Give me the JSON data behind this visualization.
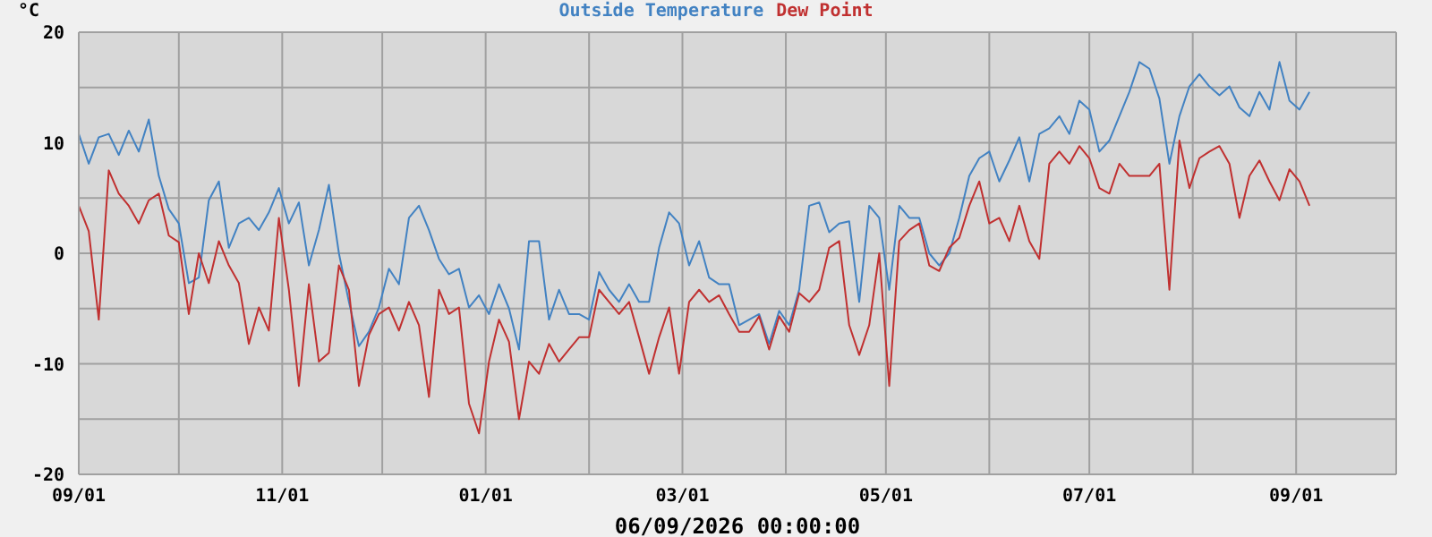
{
  "chart_data": {
    "type": "line",
    "ylabel": "°C",
    "xlabel": "06/09/2026 00:00:00",
    "legend": "top",
    "grid": true,
    "marker": "none",
    "line_style": "solid",
    "x": [
      "2025-09-01",
      "2025-09-04",
      "2025-09-07",
      "2025-09-10",
      "2025-09-13",
      "2025-09-16",
      "2025-09-19",
      "2025-09-22",
      "2025-09-25",
      "2025-09-28",
      "2025-10-01",
      "2025-10-04",
      "2025-10-07",
      "2025-10-10",
      "2025-10-13",
      "2025-10-16",
      "2025-10-19",
      "2025-10-22",
      "2025-10-25",
      "2025-10-28",
      "2025-10-31",
      "2025-11-03",
      "2025-11-06",
      "2025-11-09",
      "2025-11-12",
      "2025-11-15",
      "2025-11-18",
      "2025-11-21",
      "2025-11-24",
      "2025-11-27",
      "2025-11-30",
      "2025-12-03",
      "2025-12-06",
      "2025-12-09",
      "2025-12-12",
      "2025-12-15",
      "2025-12-18",
      "2025-12-21",
      "2025-12-24",
      "2025-12-27",
      "2025-12-30",
      "2026-01-02",
      "2026-01-05",
      "2026-01-08",
      "2026-01-11",
      "2026-01-14",
      "2026-01-17",
      "2026-01-20",
      "2026-01-23",
      "2026-01-26",
      "2026-01-29",
      "2026-02-01",
      "2026-02-04",
      "2026-02-07",
      "2026-02-10",
      "2026-02-13",
      "2026-02-16",
      "2026-02-19",
      "2026-02-22",
      "2026-02-25",
      "2026-02-28",
      "2026-03-03",
      "2026-03-06",
      "2026-03-09",
      "2026-03-12",
      "2026-03-15",
      "2026-03-18",
      "2026-03-21",
      "2026-03-24",
      "2026-03-27",
      "2026-03-30",
      "2026-04-02",
      "2026-04-05",
      "2026-04-08",
      "2026-04-11",
      "2026-04-14",
      "2026-04-17",
      "2026-04-20",
      "2026-04-23",
      "2026-04-26",
      "2026-04-29",
      "2026-05-02",
      "2026-05-05",
      "2026-05-08",
      "2026-05-11",
      "2026-05-14",
      "2026-05-17",
      "2026-05-20",
      "2026-05-23",
      "2026-05-26",
      "2026-05-29",
      "2026-06-01",
      "2026-06-04",
      "2026-06-07",
      "2026-06-10",
      "2026-06-13",
      "2026-06-16",
      "2026-06-19",
      "2026-06-22",
      "2026-06-25",
      "2026-06-28",
      "2026-07-01",
      "2026-07-04",
      "2026-07-07",
      "2026-07-10",
      "2026-07-13",
      "2026-07-16",
      "2026-07-19",
      "2026-07-22",
      "2026-07-25",
      "2026-07-28",
      "2026-07-31",
      "2026-08-03",
      "2026-08-06",
      "2026-08-09",
      "2026-08-12",
      "2026-08-15",
      "2026-08-18",
      "2026-08-21",
      "2026-08-24",
      "2026-08-27",
      "2026-08-30",
      "2026-09-02",
      "2026-09-05"
    ],
    "series": [
      {
        "name": "Outside Temperature",
        "color": "#4282c2",
        "values": [
          10.8,
          8.1,
          10.5,
          10.8,
          8.9,
          11.1,
          9.2,
          12.1,
          7,
          4,
          2.7,
          -2.7,
          -2.2,
          4.8,
          6.5,
          0.5,
          2.7,
          3.2,
          2.1,
          3.7,
          5.9,
          2.7,
          4.6,
          -1.1,
          2.1,
          6.2,
          0,
          -4.4,
          -8.4,
          -7.1,
          -4.9,
          -1.4,
          -2.8,
          3.2,
          4.3,
          2.1,
          -0.5,
          -1.9,
          -1.4,
          -4.9,
          -3.8,
          -5.5,
          -2.8,
          -5,
          -8.7,
          1.1,
          1.1,
          -6,
          -3.3,
          -5.5,
          -5.5,
          -6,
          -1.7,
          -3.3,
          -4.4,
          -2.8,
          -4.4,
          -4.4,
          0.5,
          3.7,
          2.7,
          -1.1,
          1.1,
          -2.2,
          -2.8,
          -2.8,
          -6.5,
          -6,
          -5.5,
          -8.2,
          -5.2,
          -6.5,
          -3.3,
          4.3,
          4.6,
          1.9,
          2.7,
          2.9,
          -4.4,
          4.3,
          3.2,
          -3.3,
          4.3,
          3.2,
          3.2,
          0,
          -1.1,
          0,
          3.2,
          7,
          8.6,
          9.2,
          6.5,
          8.4,
          10.5,
          6.5,
          10.8,
          11.3,
          12.4,
          10.8,
          13.8,
          13,
          9.2,
          10.2,
          12.4,
          14.6,
          17.3,
          16.7,
          14,
          8.1,
          12.4,
          15.1,
          16.2,
          15.1,
          14.3,
          15.1,
          13.2,
          12.4,
          14.6,
          13,
          17.3,
          13.8,
          13,
          14.6
        ]
      },
      {
        "name": "Dew Point",
        "color": "#c03030",
        "values": [
          4.3,
          2,
          -6,
          7.5,
          5.4,
          4.3,
          2.7,
          4.8,
          5.4,
          1.6,
          1,
          -5.5,
          0,
          -2.7,
          1.1,
          -1.1,
          -2.7,
          -8.2,
          -4.9,
          -7,
          3.2,
          -3.3,
          -12,
          -2.8,
          -9.8,
          -9,
          -1.1,
          -3.3,
          -12,
          -7.4,
          -5.5,
          -4.9,
          -7,
          -4.4,
          -6.5,
          -13,
          -3.3,
          -5.5,
          -4.9,
          -13.6,
          -16.3,
          -9.8,
          -6,
          -8,
          -15,
          -9.8,
          -10.9,
          -8.2,
          -9.8,
          -8.7,
          -7.6,
          -7.6,
          -3.3,
          -4.4,
          -5.5,
          -4.4,
          -7.6,
          -10.9,
          -7.6,
          -4.9,
          -10.9,
          -4.4,
          -3.3,
          -4.4,
          -3.8,
          -5.5,
          -7.1,
          -7.1,
          -5.7,
          -8.7,
          -5.7,
          -7.1,
          -3.6,
          -4.4,
          -3.3,
          0.5,
          1.1,
          -6.5,
          -9.2,
          -6.5,
          0,
          -12,
          1.1,
          2.1,
          2.7,
          -1.1,
          -1.6,
          0.5,
          1.4,
          4.3,
          6.5,
          2.7,
          3.2,
          1.1,
          4.3,
          1.1,
          -0.5,
          8.1,
          9.2,
          8.1,
          9.7,
          8.6,
          5.9,
          5.4,
          8.1,
          7,
          7,
          7,
          8.1,
          -3.3,
          10.2,
          5.9,
          8.6,
          9.2,
          9.7,
          8.1,
          3.2,
          7,
          8.4,
          6.5,
          4.8,
          7.6,
          6.5,
          4.3
        ]
      }
    ],
    "xlim": [
      "2025-09-01",
      "2026-10-01"
    ],
    "xticks": [
      {
        "value": "2025-09-01",
        "label": "09/01"
      },
      {
        "value": "2025-10-01",
        "label": null
      },
      {
        "value": "2025-11-01",
        "label": "11/01"
      },
      {
        "value": "2025-12-01",
        "label": null
      },
      {
        "value": "2026-01-01",
        "label": "01/01"
      },
      {
        "value": "2026-02-01",
        "label": null
      },
      {
        "value": "2026-03-01",
        "label": "03/01"
      },
      {
        "value": "2026-04-01",
        "label": null
      },
      {
        "value": "2026-05-01",
        "label": "05/01"
      },
      {
        "value": "2026-06-01",
        "label": null
      },
      {
        "value": "2026-07-01",
        "label": "07/01"
      },
      {
        "value": "2026-08-01",
        "label": null
      },
      {
        "value": "2026-09-01",
        "label": "09/01"
      },
      {
        "value": "2026-10-01",
        "label": null
      }
    ],
    "ylim": [
      -20,
      20
    ],
    "yticks": [
      -20,
      {
        "value": -15,
        "label": null
      },
      -10,
      {
        "value": -5,
        "label": null
      },
      0,
      {
        "value": 5,
        "label": null
      },
      10,
      {
        "value": 15,
        "label": null
      },
      20
    ]
  }
}
